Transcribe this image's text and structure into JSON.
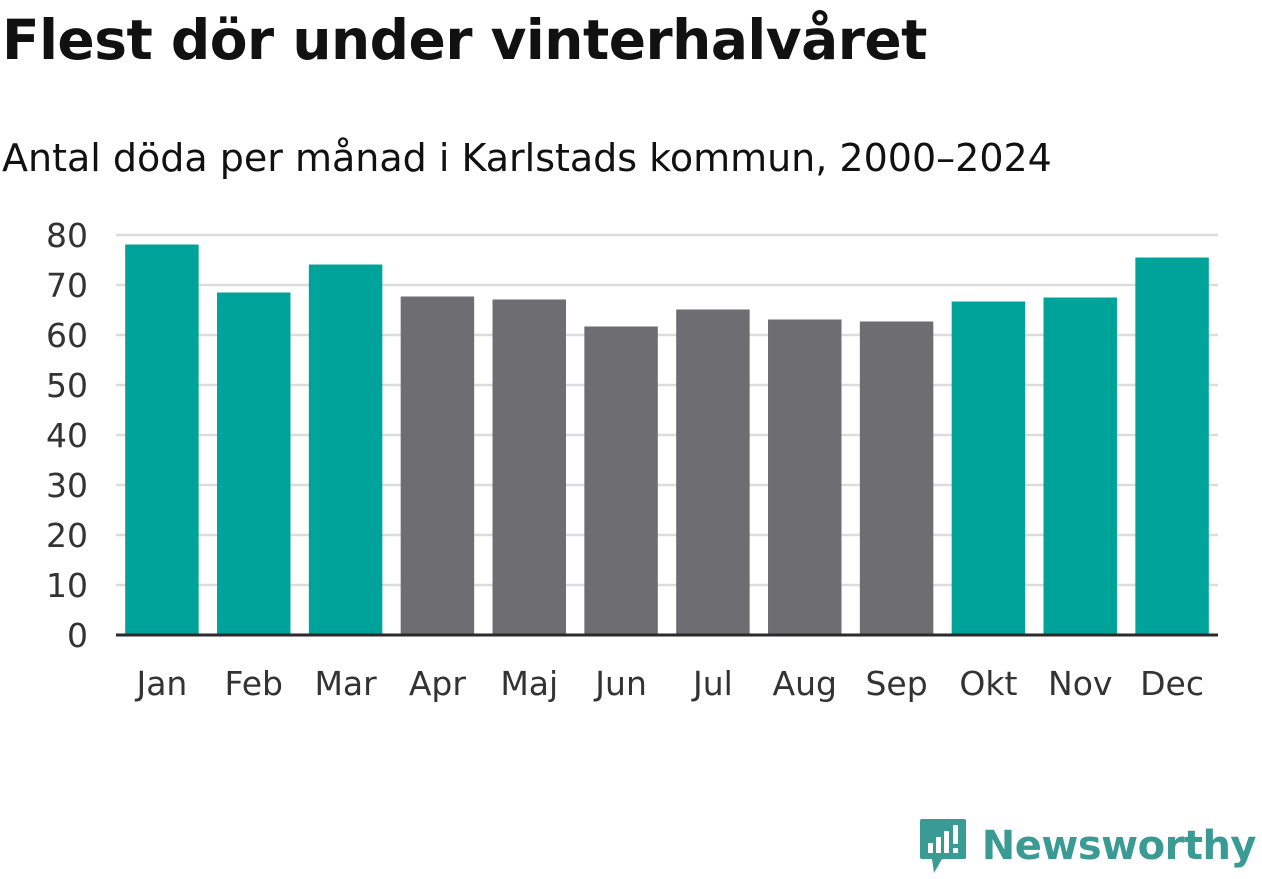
{
  "header": {
    "title": "Flest dör under vinterhalvåret",
    "subtitle": "Antal döda per månad i Karlstads kommun, 2000–2024"
  },
  "brand": {
    "name": "Newsworthy"
  },
  "colors": {
    "winter": "#00a39a",
    "summer": "#6e6d72",
    "grid": "#dcdcdc",
    "axis": "#2b2b2b",
    "text": "#111111",
    "brand": "#3a9a94"
  },
  "chart_data": {
    "type": "bar",
    "title": "Flest dör under vinterhalvåret",
    "subtitle": "Antal döda per månad i Karlstads kommun, 2000–2024",
    "xlabel": "",
    "ylabel": "",
    "ylim": [
      0,
      80
    ],
    "yticks": [
      0,
      10,
      20,
      30,
      40,
      50,
      60,
      70,
      80
    ],
    "grid": true,
    "categories": [
      "Jan",
      "Feb",
      "Mar",
      "Apr",
      "Maj",
      "Jun",
      "Jul",
      "Aug",
      "Sep",
      "Okt",
      "Nov",
      "Dec"
    ],
    "values": [
      78.1,
      68.5,
      74.1,
      67.7,
      67.1,
      61.7,
      65.1,
      63.1,
      62.7,
      66.7,
      67.5,
      75.5
    ],
    "highlight": [
      "winter",
      "winter",
      "winter",
      "summer",
      "summer",
      "summer",
      "summer",
      "summer",
      "summer",
      "winter",
      "winter",
      "winter"
    ]
  }
}
